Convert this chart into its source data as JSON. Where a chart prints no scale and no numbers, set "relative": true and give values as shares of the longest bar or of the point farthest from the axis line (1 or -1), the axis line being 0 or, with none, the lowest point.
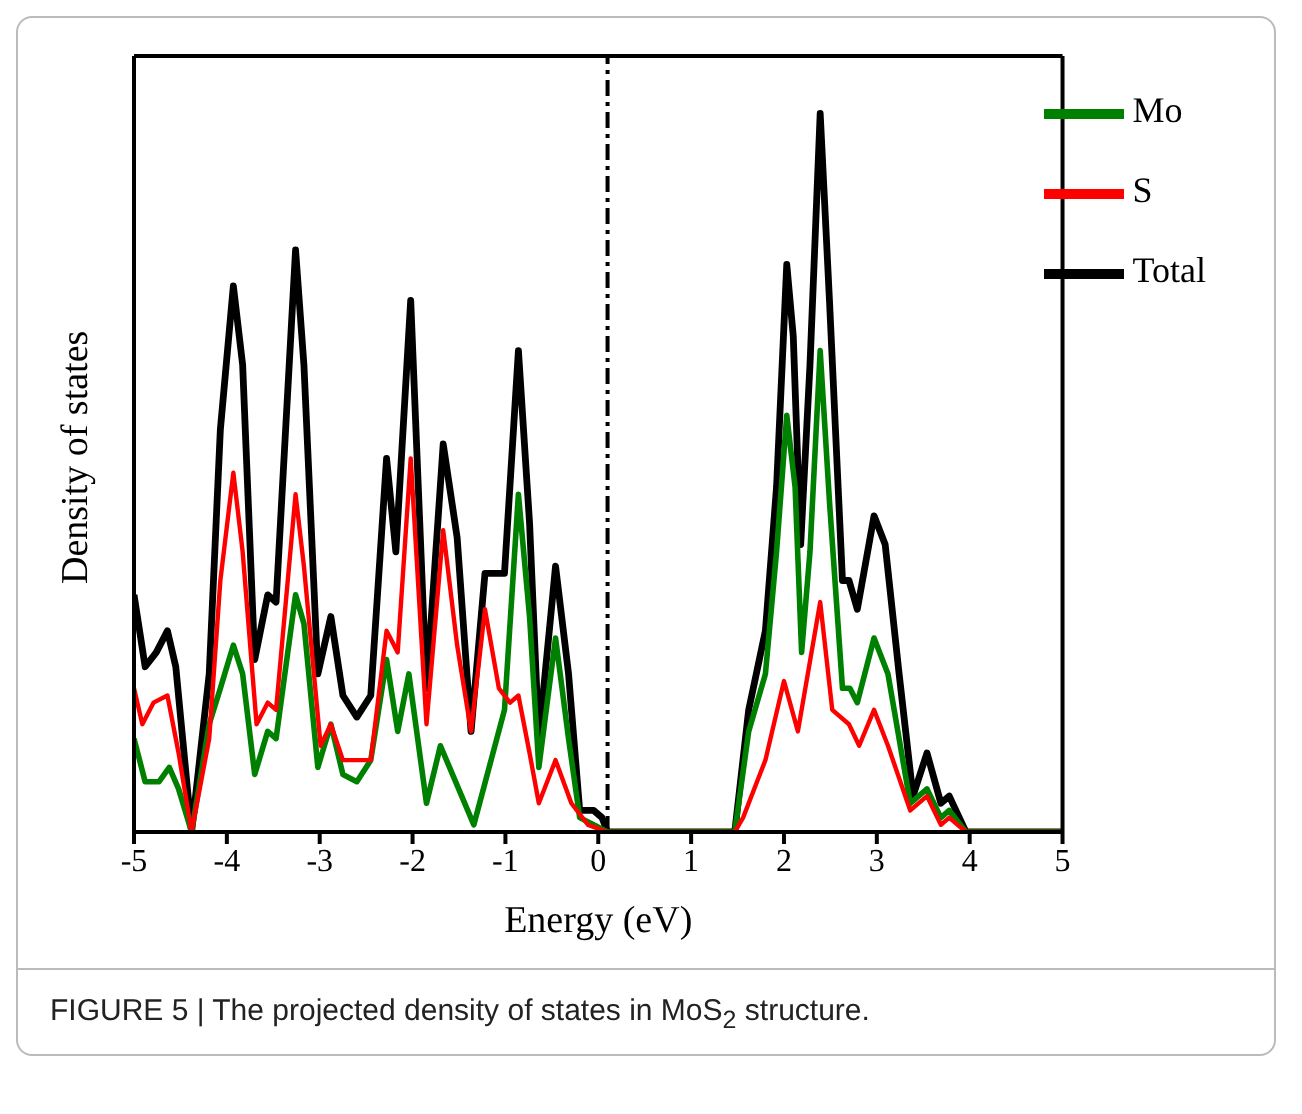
{
  "chart_data": {
    "type": "line",
    "xlabel": "Energy (eV)",
    "ylabel": "Density of states",
    "relative": true,
    "xlim": [
      -5,
      5
    ],
    "xticks": [
      -5,
      -4,
      -3,
      -2,
      -1,
      0,
      1,
      2,
      3,
      4,
      5
    ],
    "legend": "top right",
    "grid": false,
    "marker": "none",
    "line_style": "solid",
    "ref_lines": [
      {
        "axis": "x",
        "value": 0.1,
        "line_style": "dashdot",
        "color": "#000000"
      }
    ],
    "annotations": [
      "FIGURE 5 | The projected density of states in MoS$_{2}$ structure."
    ],
    "series": [
      {
        "name": "Total",
        "color": "#000000",
        "x": [
          -5,
          -4.88,
          -4.76,
          -4.64,
          -4.55,
          -4.38,
          -4.19,
          -4.07,
          -3.93,
          -3.83,
          -3.7,
          -3.56,
          -3.47,
          -3.26,
          -3.17,
          -3.02,
          -2.88,
          -2.75,
          -2.6,
          -2.45,
          -2.28,
          -2.18,
          -2.02,
          -1.85,
          -1.67,
          -1.52,
          -1.37,
          -1.22,
          -1.01,
          -0.86,
          -0.74,
          -0.64,
          -0.46,
          -0.32,
          -0.2,
          -0.05,
          0.04,
          0.1,
          1.47,
          1.62,
          1.8,
          1.92,
          2.03,
          2.1,
          2.18,
          2.28,
          2.39,
          2.49,
          2.63,
          2.7,
          2.79,
          2.97,
          3.09,
          3.24,
          3.39,
          3.54,
          3.69,
          3.78,
          3.96,
          5
        ],
        "values": [
          0.33,
          0.23,
          0.25,
          0.28,
          0.23,
          0,
          0.22,
          0.56,
          0.76,
          0.65,
          0.24,
          0.33,
          0.32,
          0.81,
          0.65,
          0.22,
          0.3,
          0.19,
          0.16,
          0.19,
          0.52,
          0.39,
          0.74,
          0.2,
          0.54,
          0.41,
          0.14,
          0.36,
          0.36,
          0.67,
          0.43,
          0.13,
          0.37,
          0.22,
          0.03,
          0.03,
          0.02,
          0,
          0,
          0.17,
          0.28,
          0.48,
          0.79,
          0.69,
          0.4,
          0.65,
          1,
          0.74,
          0.35,
          0.35,
          0.31,
          0.44,
          0.4,
          0.22,
          0.05,
          0.11,
          0.04,
          0.05,
          0,
          0
        ]
      },
      {
        "name": "Mo",
        "color": "#008000",
        "x": [
          -5,
          -4.88,
          -4.73,
          -4.62,
          -4.52,
          -4.38,
          -4.19,
          -4.07,
          -3.93,
          -3.83,
          -3.7,
          -3.56,
          -3.47,
          -3.26,
          -3.17,
          -3.02,
          -2.88,
          -2.75,
          -2.6,
          -2.45,
          -2.28,
          -2.16,
          -2.04,
          -1.85,
          -1.7,
          -1.34,
          -1.01,
          -0.86,
          -0.74,
          -0.64,
          -0.46,
          -0.32,
          -0.2,
          -0.05,
          0.1,
          1.47,
          1.62,
          1.8,
          1.92,
          2.03,
          2.12,
          2.19,
          2.28,
          2.39,
          2.49,
          2.63,
          2.71,
          2.79,
          2.97,
          3.12,
          3.36,
          3.54,
          3.69,
          3.78,
          3.96,
          5
        ],
        "values": [
          0.13,
          0.07,
          0.07,
          0.09,
          0.06,
          0,
          0.15,
          0.2,
          0.26,
          0.22,
          0.08,
          0.14,
          0.13,
          0.33,
          0.29,
          0.09,
          0.15,
          0.08,
          0.07,
          0.1,
          0.24,
          0.14,
          0.22,
          0.04,
          0.12,
          0.01,
          0.17,
          0.47,
          0.3,
          0.09,
          0.27,
          0.13,
          0.02,
          0.01,
          0,
          0,
          0.14,
          0.22,
          0.39,
          0.58,
          0.48,
          0.25,
          0.39,
          0.67,
          0.46,
          0.2,
          0.2,
          0.18,
          0.27,
          0.22,
          0.04,
          0.06,
          0.02,
          0.03,
          0,
          0
        ]
      },
      {
        "name": "S",
        "color": "#ff0000",
        "x": [
          -5,
          -4.91,
          -4.79,
          -4.64,
          -4.52,
          -4.38,
          -4.19,
          -4.07,
          -3.93,
          -3.83,
          -3.68,
          -3.56,
          -3.47,
          -3.26,
          -3.17,
          -2.99,
          -2.88,
          -2.75,
          -2.6,
          -2.45,
          -2.28,
          -2.16,
          -2.02,
          -1.85,
          -1.67,
          -1.52,
          -1.37,
          -1.22,
          -1.07,
          -0.95,
          -0.86,
          -0.74,
          -0.64,
          -0.46,
          -0.29,
          -0.11,
          0.1,
          1.47,
          1.56,
          1.8,
          2.0,
          2.15,
          2.39,
          2.52,
          2.7,
          2.81,
          2.97,
          3.12,
          3.36,
          3.54,
          3.69,
          3.78,
          3.96,
          5
        ],
        "values": [
          0.2,
          0.15,
          0.18,
          0.19,
          0.11,
          0,
          0.13,
          0.35,
          0.5,
          0.39,
          0.15,
          0.18,
          0.17,
          0.47,
          0.37,
          0.12,
          0.15,
          0.1,
          0.1,
          0.1,
          0.28,
          0.25,
          0.52,
          0.15,
          0.42,
          0.26,
          0.14,
          0.31,
          0.2,
          0.18,
          0.19,
          0.11,
          0.04,
          0.1,
          0.04,
          0.01,
          0,
          0,
          0.02,
          0.1,
          0.21,
          0.14,
          0.32,
          0.17,
          0.15,
          0.12,
          0.17,
          0.12,
          0.03,
          0.05,
          0.01,
          0.02,
          0,
          0
        ]
      }
    ]
  }
}
